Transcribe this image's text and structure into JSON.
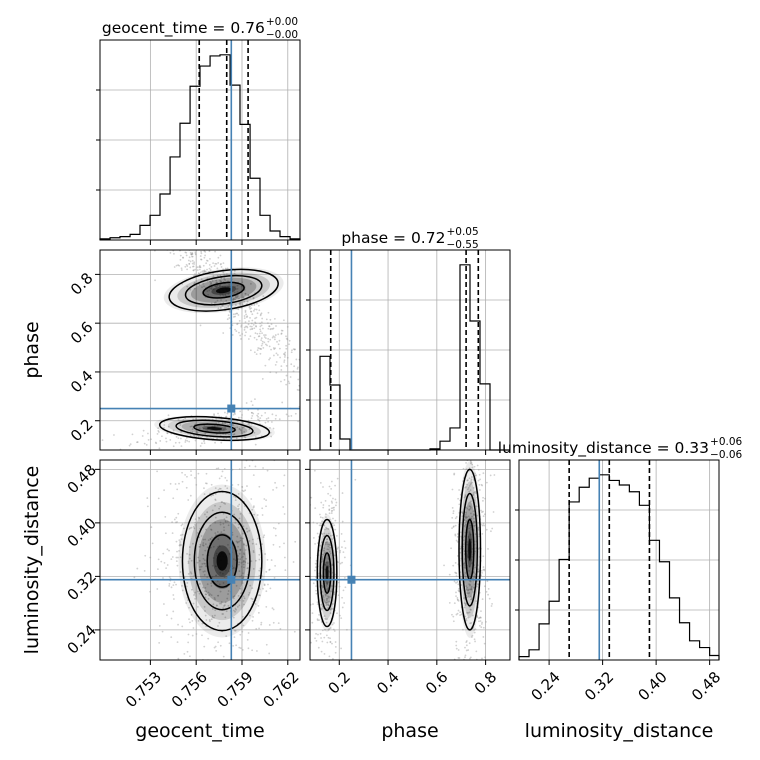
{
  "chart_data": {
    "type": "corner",
    "params": [
      "geocent_time",
      "phase",
      "luminosity_distance"
    ],
    "axis_labels": {
      "geocent_time": "geocent_time",
      "phase": "phase",
      "luminosity_distance": "luminosity_distance"
    },
    "ranges": {
      "geocent_time": [
        0.7497,
        0.7628
      ],
      "phase": [
        0.08,
        0.9
      ],
      "luminosity_distance": [
        0.195,
        0.494
      ]
    },
    "ticks": {
      "geocent_time": [
        0.753,
        0.756,
        0.759,
        0.762
      ],
      "phase": [
        0.2,
        0.4,
        0.6,
        0.8
      ],
      "luminosity_distance": [
        0.24,
        0.32,
        0.4,
        0.48
      ]
    },
    "tick_labels": {
      "geocent_time": [
        "0.753",
        "0.756",
        "0.759",
        "0.762"
      ],
      "phase": [
        "0.2",
        "0.4",
        "0.6",
        "0.8"
      ],
      "luminosity_distance": [
        "0.24",
        "0.32",
        "0.40",
        "0.48"
      ]
    },
    "truths": {
      "geocent_time": 0.7583,
      "phase": 0.25,
      "luminosity_distance": 0.315
    },
    "truth_color": "#4682b4",
    "titles": [
      {
        "param": "geocent_time",
        "label": "geocent_time = 0.76",
        "plus": "+0.00",
        "minus": "−0.00"
      },
      {
        "param": "phase",
        "label": "phase = 0.72",
        "plus": "+0.05",
        "minus": "−0.55"
      },
      {
        "param": "luminosity_distance",
        "label": "luminosity_distance = 0.33",
        "plus": "+0.06",
        "minus": "−0.06"
      }
    ],
    "quantiles": {
      "geocent_time": [
        0.7562,
        0.758,
        0.7594
      ],
      "phase": [
        0.165,
        0.72,
        0.77
      ],
      "luminosity_distance": [
        0.27,
        0.33,
        0.39
      ]
    },
    "histograms": {
      "geocent_time": {
        "edges": [
          0.7497,
          0.75036,
          0.75101,
          0.75167,
          0.75232,
          0.75298,
          0.75363,
          0.75429,
          0.75494,
          0.7556,
          0.75625,
          0.75691,
          0.75756,
          0.75822,
          0.75887,
          0.75953,
          0.76018,
          0.76084,
          0.76149,
          0.76215,
          0.7628
        ],
        "counts": [
          1,
          2,
          3,
          5,
          13,
          22,
          41,
          74,
          104,
          137,
          155,
          164,
          165,
          138,
          103,
          55,
          22,
          8,
          3,
          1
        ]
      },
      "phase": {
        "edges": [
          0.08,
          0.121,
          0.162,
          0.203,
          0.244,
          0.285,
          0.326,
          0.367,
          0.408,
          0.449,
          0.49,
          0.531,
          0.572,
          0.613,
          0.654,
          0.695,
          0.736,
          0.777,
          0.818,
          0.859,
          0.9
        ],
        "counts": [
          0,
          85,
          59,
          10,
          0,
          0,
          0,
          0,
          0,
          0,
          0,
          0,
          1,
          8,
          20,
          168,
          117,
          60,
          0,
          0
        ]
      },
      "luminosity_distance": {
        "edges": [
          0.195,
          0.21,
          0.225,
          0.24,
          0.255,
          0.27,
          0.285,
          0.3,
          0.315,
          0.33,
          0.345,
          0.36,
          0.375,
          0.39,
          0.405,
          0.42,
          0.435,
          0.45,
          0.465,
          0.48,
          0.494
        ],
        "counts": [
          3,
          9,
          32,
          52,
          89,
          140,
          153,
          161,
          164,
          159,
          155,
          149,
          137,
          106,
          87,
          55,
          33,
          17,
          11,
          4
        ]
      }
    },
    "density_blobs": [
      {
        "x": "geocent_time",
        "y": "phase",
        "blobs": [
          {
            "cx": 0.7578,
            "cy": 0.735,
            "sx": 0.0018,
            "sy": 0.04,
            "rot": -8,
            "w": 1.0
          },
          {
            "cx": 0.7572,
            "cy": 0.168,
            "sx": 0.0018,
            "sy": 0.023,
            "rot": 4,
            "w": 0.4
          }
        ]
      },
      {
        "x": "geocent_time",
        "y": "luminosity_distance",
        "blobs": [
          {
            "cx": 0.7577,
            "cy": 0.343,
            "sx": 0.0013,
            "sy": 0.052,
            "rot": 0,
            "w": 1.0
          }
        ]
      },
      {
        "x": "phase",
        "y": "luminosity_distance",
        "blobs": [
          {
            "cx": 0.735,
            "cy": 0.36,
            "sx": 0.022,
            "sy": 0.06,
            "rot": 0,
            "w": 0.8
          },
          {
            "cx": 0.15,
            "cy": 0.325,
            "sx": 0.02,
            "sy": 0.04,
            "rot": 0,
            "w": 0.55
          }
        ]
      }
    ],
    "grid": true,
    "colors": {
      "hist": "#000000",
      "contour": "#000000",
      "density": "#000000",
      "scatter": "#9a9a9a",
      "grid": "#b0b0b0"
    }
  }
}
